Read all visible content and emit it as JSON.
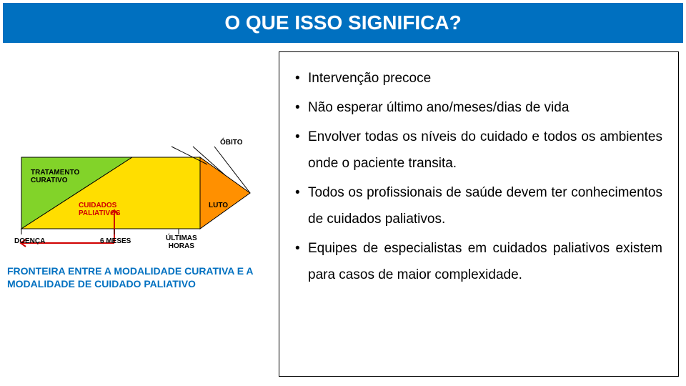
{
  "title": "O QUE ISSO SIGNIFICA?",
  "diagram": {
    "labels": {
      "obito": "ÓBITO",
      "tratamento": "TRATAMENTO\nCURATIVO",
      "cuidados": "CUIDADOS\nPALIATIVOS",
      "luto": "LUTO",
      "doenca": "DOENÇA",
      "seis_meses": "6 MESES",
      "ultimas": "ÚLTIMAS\nHORAS"
    },
    "colors": {
      "triangle_green": "#82d329",
      "triangle_yellow": "#ffde00",
      "triangle_orange": "#ff9000",
      "outline": "#000000",
      "arrow_red": "#d00000"
    }
  },
  "footer": "FRONTEIRA ENTRE A MODALIDADE CURATIVA E A MODALIDADE DE CUIDADO PALIATIVO",
  "bullets": [
    "Intervenção precoce",
    "Não esperar último ano/meses/dias de vida",
    "Envolver todas os níveis do cuidado e todos os ambientes onde o paciente transita.",
    "Todos os profissionais de saúde devem ter conhecimentos de cuidados paliativos.",
    "Equipes de especialistas em cuidados paliativos existem para casos de maior complexidade."
  ]
}
